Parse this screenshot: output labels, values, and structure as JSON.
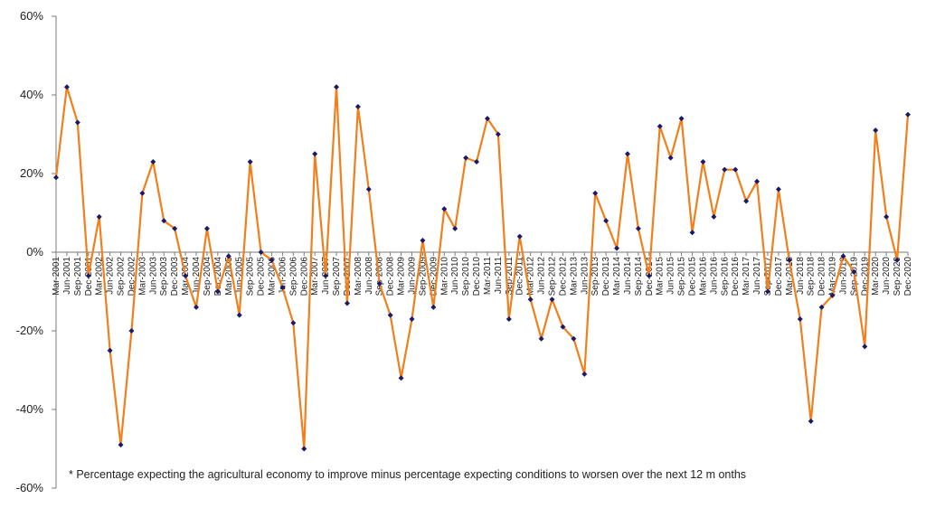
{
  "chart_data": {
    "type": "line",
    "title": "",
    "xlabel": "",
    "ylabel": "",
    "ylim": [
      -60,
      60
    ],
    "y_ticks": [
      "60%",
      "40%",
      "20%",
      "0%",
      "-20%",
      "-40%",
      "-60%"
    ],
    "grid": false,
    "legend": "none",
    "categories": [
      "Mar-2001",
      "Jun-2001",
      "Sep-2001",
      "Dec-2001",
      "Mar-2002",
      "Jun-2002",
      "Sep-2002",
      "Dec-2002",
      "Mar-2003",
      "Jun-2003",
      "Sep-2003",
      "Dec-2003",
      "Mar-2004",
      "Jun-2004",
      "Sep-2004",
      "Dec-2004",
      "Mar-2005",
      "Jun-2005",
      "Sep-2005",
      "Dec-2005",
      "Mar-2006",
      "Jun-2006",
      "Sep-2006",
      "Dec-2006",
      "Mar-2007",
      "Jun-2007",
      "Sep-2007",
      "Dec-2007",
      "Mar-2008",
      "Jun-2008",
      "Sep-2008",
      "Dec-2008",
      "Mar-2009",
      "Jun-2009",
      "Sep-2009",
      "Dec-2009",
      "Mar-2010",
      "Jun-2010",
      "Sep-2010",
      "Dec-2010",
      "Mar-2011",
      "Jun-2011",
      "Sep-2011",
      "Dec-2011",
      "Mar-2012",
      "Jun-2012",
      "Sep-2012",
      "Dec-2012",
      "Mar-2013",
      "Jun-2013",
      "Sep-2013",
      "Dec-2013",
      "Mar-2014",
      "Jun-2014",
      "Sep-2014",
      "Dec-2014",
      "Mar-2015",
      "Jun-2015",
      "Sep-2015",
      "Dec-2015",
      "Mar-2016",
      "Jun-2016",
      "Sep-2016",
      "Dec-2016",
      "Mar-2017",
      "Jun-2017",
      "Sep-2017",
      "Dec-2017",
      "Mar-2018",
      "Jun-2018",
      "Sep-2018",
      "Dec-2018",
      "Mar-2019",
      "Jun-2019",
      "Sep-2019",
      "Dec-2019",
      "Mar-2020",
      "Jun-2020",
      "Sep-2020",
      "Dec-2020"
    ],
    "series": [
      {
        "values": [
          19,
          42,
          33,
          -6,
          9,
          -25,
          -49,
          -20,
          15,
          23,
          8,
          6,
          -6,
          -14,
          6,
          -10,
          -1,
          -16,
          23,
          0,
          -2,
          -9,
          -18,
          -50,
          25,
          -6,
          42,
          -13,
          37,
          16,
          -8,
          -16,
          -32,
          -17,
          3,
          -14,
          11,
          6,
          24,
          23,
          34,
          30,
          -17,
          4,
          -12,
          -22,
          -12,
          -19,
          -22,
          -31,
          15,
          8,
          1,
          25,
          6,
          -6,
          32,
          24,
          34,
          5,
          23,
          9,
          21,
          21,
          13,
          18,
          -10,
          16,
          -2,
          -17,
          -43,
          -14,
          -11,
          -1,
          -5,
          -24,
          31,
          9,
          -2,
          35
        ],
        "color": "#f07f1c",
        "marker_color": "#1a1a66"
      }
    ],
    "annotation": "* Percentage expecting the agricultural economy to improve minus percentage expecting conditions to worsen over the next 12 m onths"
  }
}
